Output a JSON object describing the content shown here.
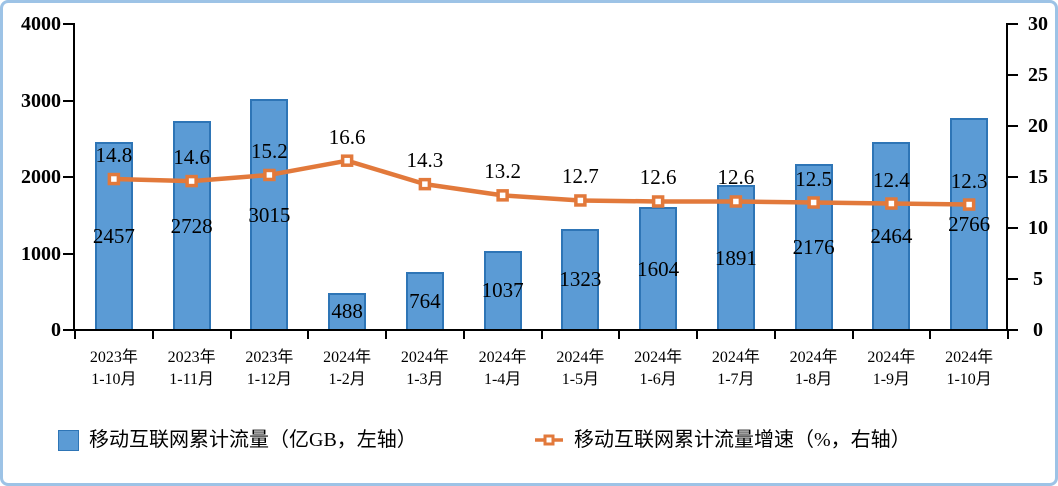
{
  "chart_data": {
    "type": "bar",
    "subtype": "bar-line-combo",
    "categories": [
      {
        "year": "2023年",
        "months": "1-10月"
      },
      {
        "year": "2023年",
        "months": "1-11月"
      },
      {
        "year": "2023年",
        "months": "1-12月"
      },
      {
        "year": "2024年",
        "months": "1-2月"
      },
      {
        "year": "2024年",
        "months": "1-3月"
      },
      {
        "year": "2024年",
        "months": "1-4月"
      },
      {
        "year": "2024年",
        "months": "1-5月"
      },
      {
        "year": "2024年",
        "months": "1-6月"
      },
      {
        "year": "2024年",
        "months": "1-7月"
      },
      {
        "year": "2024年",
        "months": "1-8月"
      },
      {
        "year": "2024年",
        "months": "1-9月"
      },
      {
        "year": "2024年",
        "months": "1-10月"
      }
    ],
    "series": [
      {
        "name": "移动互联网累计流量（亿GB，左轴）",
        "type": "bar",
        "axis": "left",
        "values": [
          2457,
          2728,
          3015,
          488,
          764,
          1037,
          1323,
          1604,
          1891,
          2176,
          2464,
          2766
        ],
        "label_decimals": 0
      },
      {
        "name": "移动互联网累计流量增速（%，右轴）",
        "type": "line",
        "axis": "right",
        "values": [
          14.8,
          14.6,
          15.2,
          16.6,
          14.3,
          13.2,
          12.7,
          12.6,
          12.6,
          12.5,
          12.4,
          12.3
        ],
        "label_decimals": 1
      }
    ],
    "left_axis": {
      "min": 0,
      "max": 4000,
      "ticks": [
        0,
        1000,
        2000,
        3000,
        4000
      ]
    },
    "right_axis": {
      "min": 0,
      "max": 30,
      "ticks": [
        0,
        5,
        10,
        15,
        20,
        25,
        30
      ]
    },
    "grid": false,
    "legend_position": "bottom"
  },
  "colors": {
    "bar_fill": "#5B9BD5",
    "bar_border": "#2E75B6",
    "line": "#E2793B",
    "marker_fill": "#FFFFFF",
    "axis": "#000000",
    "text": "#000000",
    "frame_border": "#9DC3E6",
    "background": "#FFFFFF"
  }
}
